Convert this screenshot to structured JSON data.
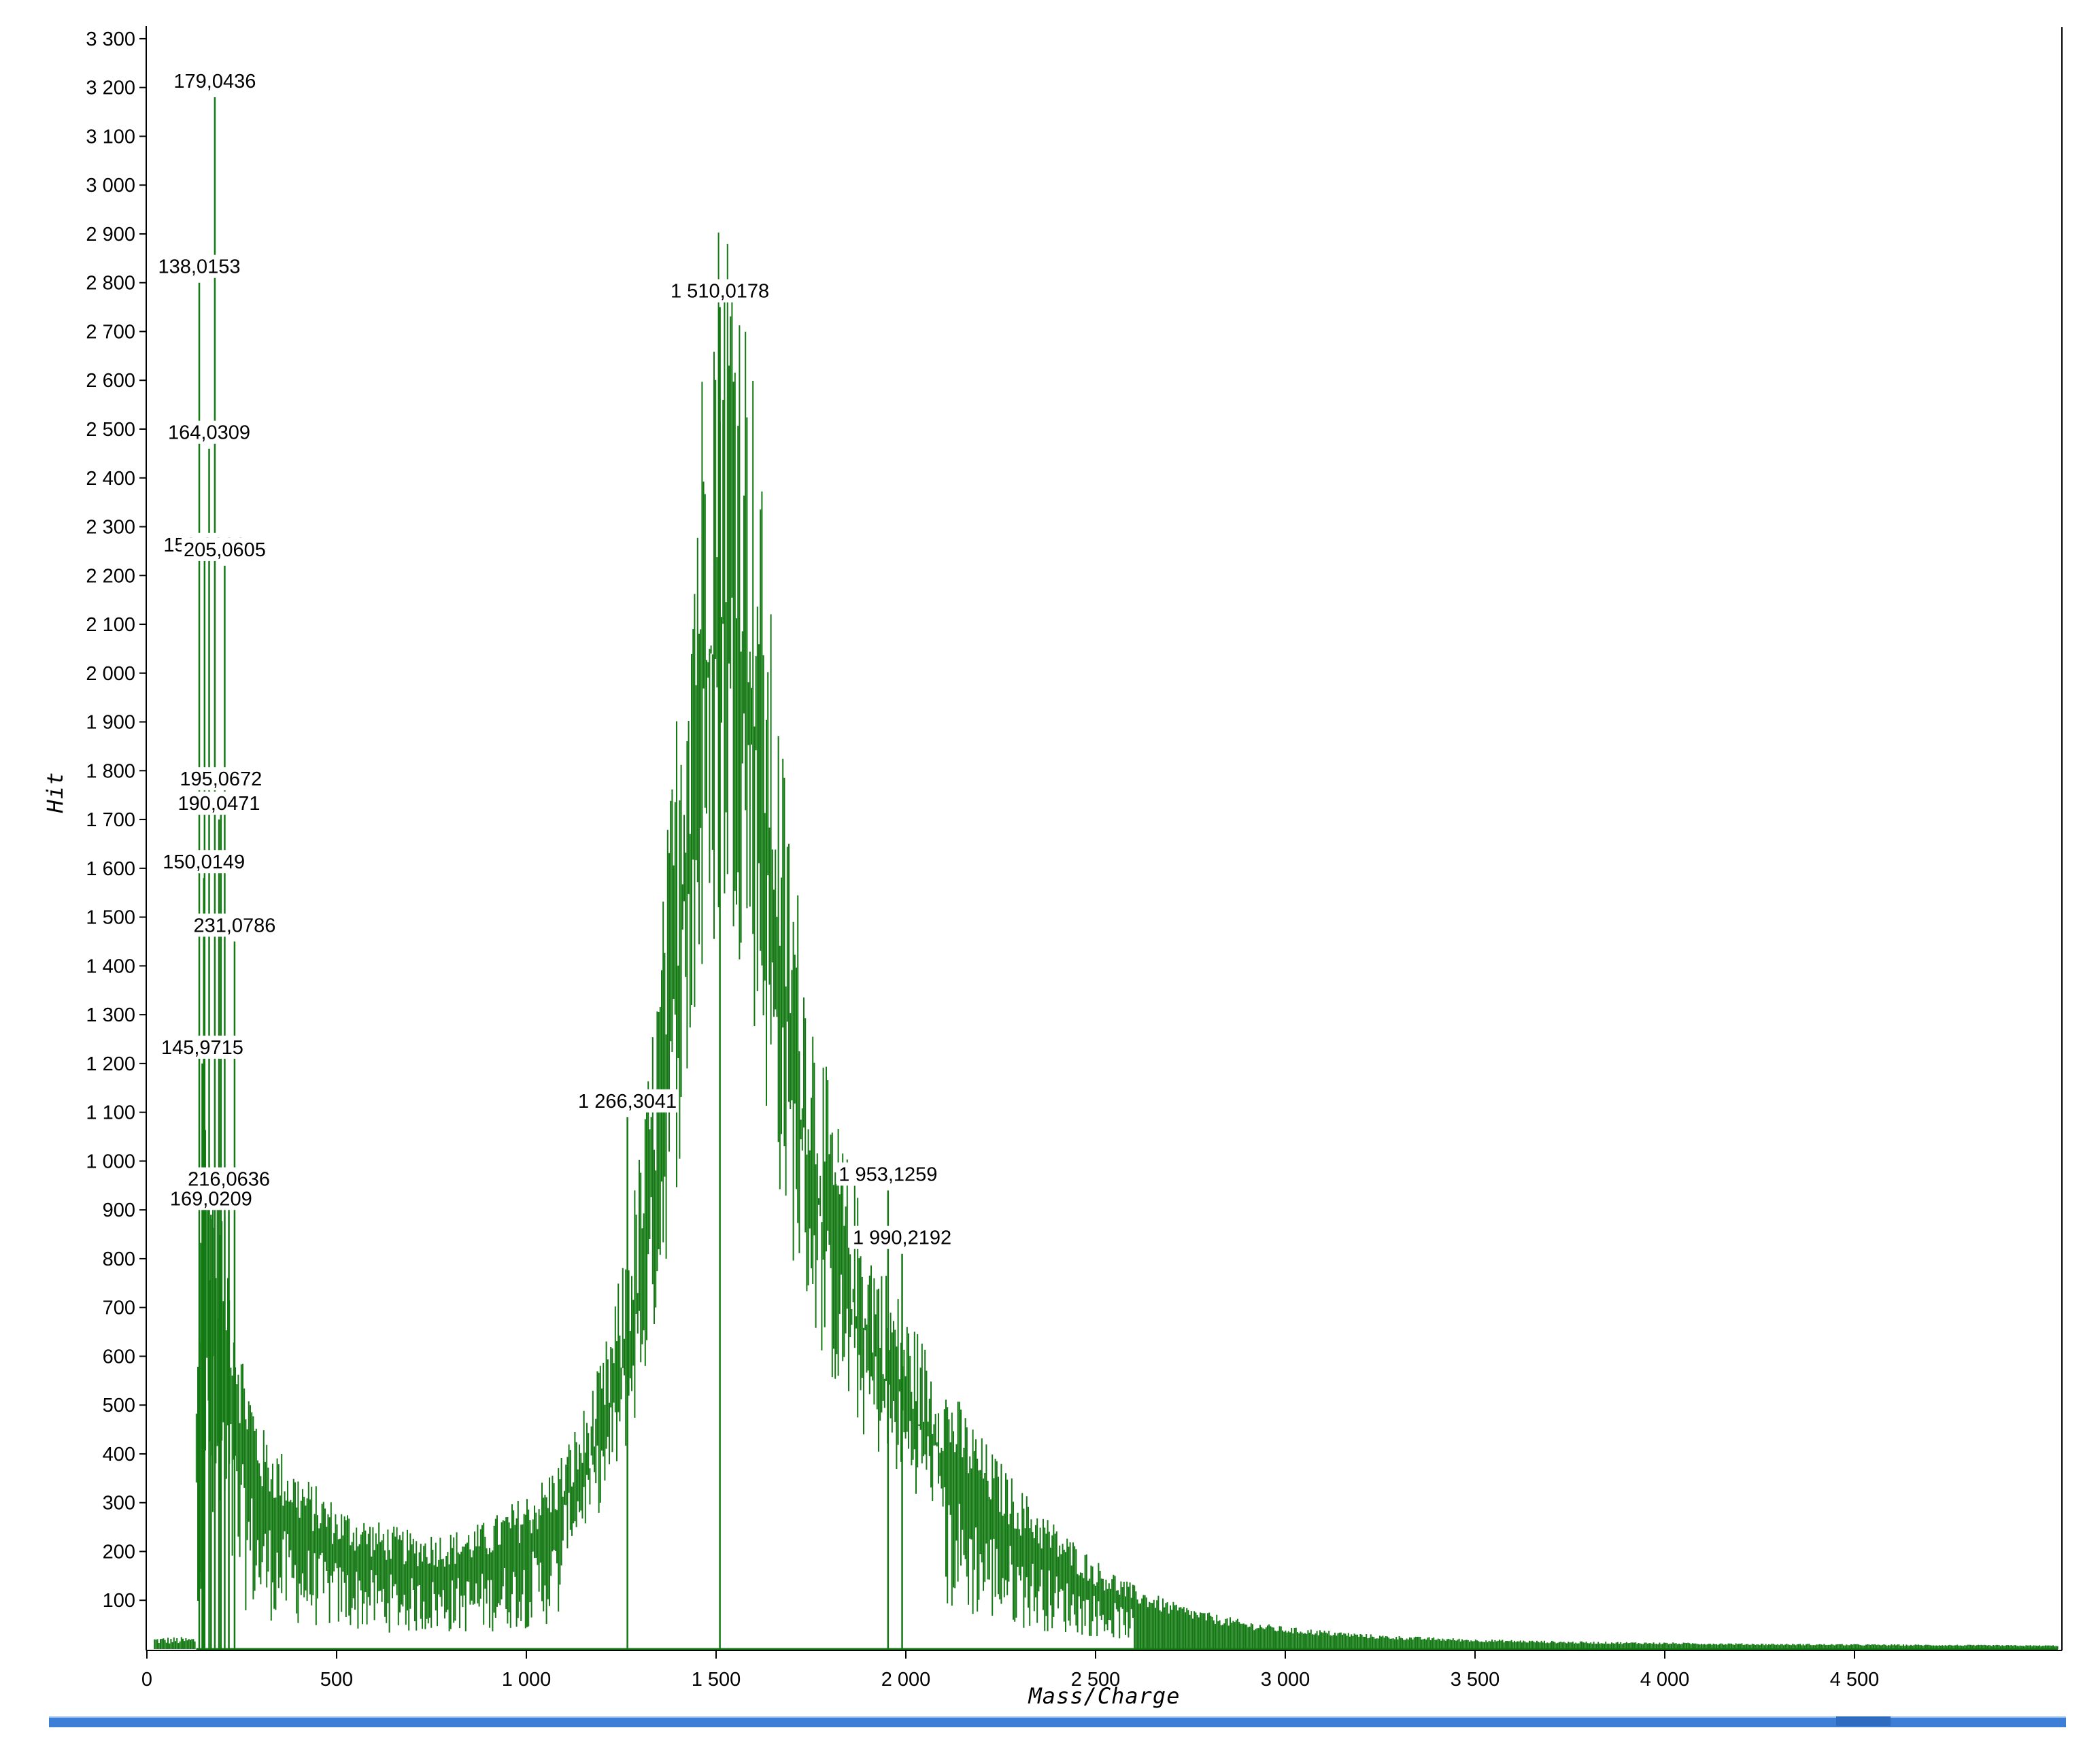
{
  "chart_data": {
    "type": "line",
    "title": "",
    "xlabel": "Mass/Charge",
    "ylabel": "Hit",
    "xlim": [
      0,
      5000
    ],
    "ylim": [
      0,
      3300
    ],
    "x_ticks": [
      0,
      500,
      1000,
      1500,
      2000,
      2500,
      3000,
      3500,
      4000,
      4500
    ],
    "x_tick_labels": [
      "0",
      "500",
      "1 000",
      "1 500",
      "2 000",
      "2 500",
      "3 000",
      "3 500",
      "4 000",
      "4 500"
    ],
    "y_ticks": [
      100,
      200,
      300,
      400,
      500,
      600,
      700,
      800,
      900,
      1000,
      1100,
      1200,
      1300,
      1400,
      1500,
      1600,
      1700,
      1800,
      1900,
      2000,
      2100,
      2200,
      2300,
      2400,
      2500,
      2600,
      2700,
      2800,
      2900,
      3000,
      3100,
      3200,
      3300
    ],
    "y_tick_labels": [
      "100",
      "200",
      "300",
      "400",
      "500",
      "600",
      "700",
      "800",
      "900",
      "1 000",
      "1 100",
      "1 200",
      "1 300",
      "1 400",
      "1 500",
      "1 600",
      "1 700",
      "1 800",
      "1 900",
      "2 000",
      "2 100",
      "2 200",
      "2 300",
      "2 400",
      "2 500",
      "2 600",
      "2 700",
      "2 800",
      "2 900",
      "3 000",
      "3 100",
      "3 200",
      "3 300"
    ],
    "grid": false,
    "legend": "none",
    "series": [
      {
        "color": "#137a13",
        "envelope_x": [
          20,
          100,
          130,
          150,
          200,
          250,
          300,
          350,
          400,
          500,
          600,
          700,
          800,
          900,
          1000,
          1050,
          1100,
          1150,
          1200,
          1250,
          1300,
          1350,
          1400,
          1450,
          1500,
          1550,
          1600,
          1650,
          1700,
          1750,
          1800,
          1850,
          1900,
          1950,
          2000,
          2100,
          2200,
          2300,
          2400,
          2500,
          2600,
          2700,
          2800,
          2900,
          3000,
          3250,
          3500,
          3750,
          4000,
          4250,
          4500,
          4750,
          5000
        ],
        "envelope_y": [
          15,
          12,
          500,
          1000,
          800,
          550,
          400,
          360,
          320,
          260,
          230,
          210,
          210,
          230,
          280,
          310,
          360,
          430,
          520,
          680,
          900,
          1250,
          1750,
          2250,
          2600,
          2650,
          2300,
          1800,
          1450,
          1200,
          1000,
          870,
          760,
          680,
          610,
          490,
          380,
          290,
          220,
          160,
          115,
          85,
          65,
          50,
          40,
          25,
          18,
          14,
          12,
          10,
          9,
          8,
          7
        ],
        "peaks": [
          {
            "x": 138.0153,
            "y": 2800,
            "label": "138,0153"
          },
          {
            "x": 145.9715,
            "y": 1200,
            "label": "145,9715"
          },
          {
            "x": 150.0149,
            "y": 1580,
            "label": "150,0149"
          },
          {
            "x": 152.0296,
            "y": 2230,
            "label": "152,0296"
          },
          {
            "x": 164.0309,
            "y": 2460,
            "label": "164,0309"
          },
          {
            "x": 169.0209,
            "y": 890,
            "label": "169,0209"
          },
          {
            "x": 179.0436,
            "y": 3180,
            "label": "179,0436"
          },
          {
            "x": 190.0471,
            "y": 1700,
            "label": "190,0471"
          },
          {
            "x": 195.0672,
            "y": 1750,
            "label": "195,0672"
          },
          {
            "x": 205.0605,
            "y": 2220,
            "label": "205,0605"
          },
          {
            "x": 216.0636,
            "y": 930,
            "label": "216,0636"
          },
          {
            "x": 231.0786,
            "y": 1450,
            "label": "231,0786"
          },
          {
            "x": 1266.3041,
            "y": 1090,
            "label": "1 266,3041"
          },
          {
            "x": 1510.0178,
            "y": 2750,
            "label": "1 510,0178"
          },
          {
            "x": 1953.1259,
            "y": 940,
            "label": "1 953,1259"
          },
          {
            "x": 1990.2192,
            "y": 810,
            "label": "1 990,2192"
          }
        ]
      }
    ]
  }
}
